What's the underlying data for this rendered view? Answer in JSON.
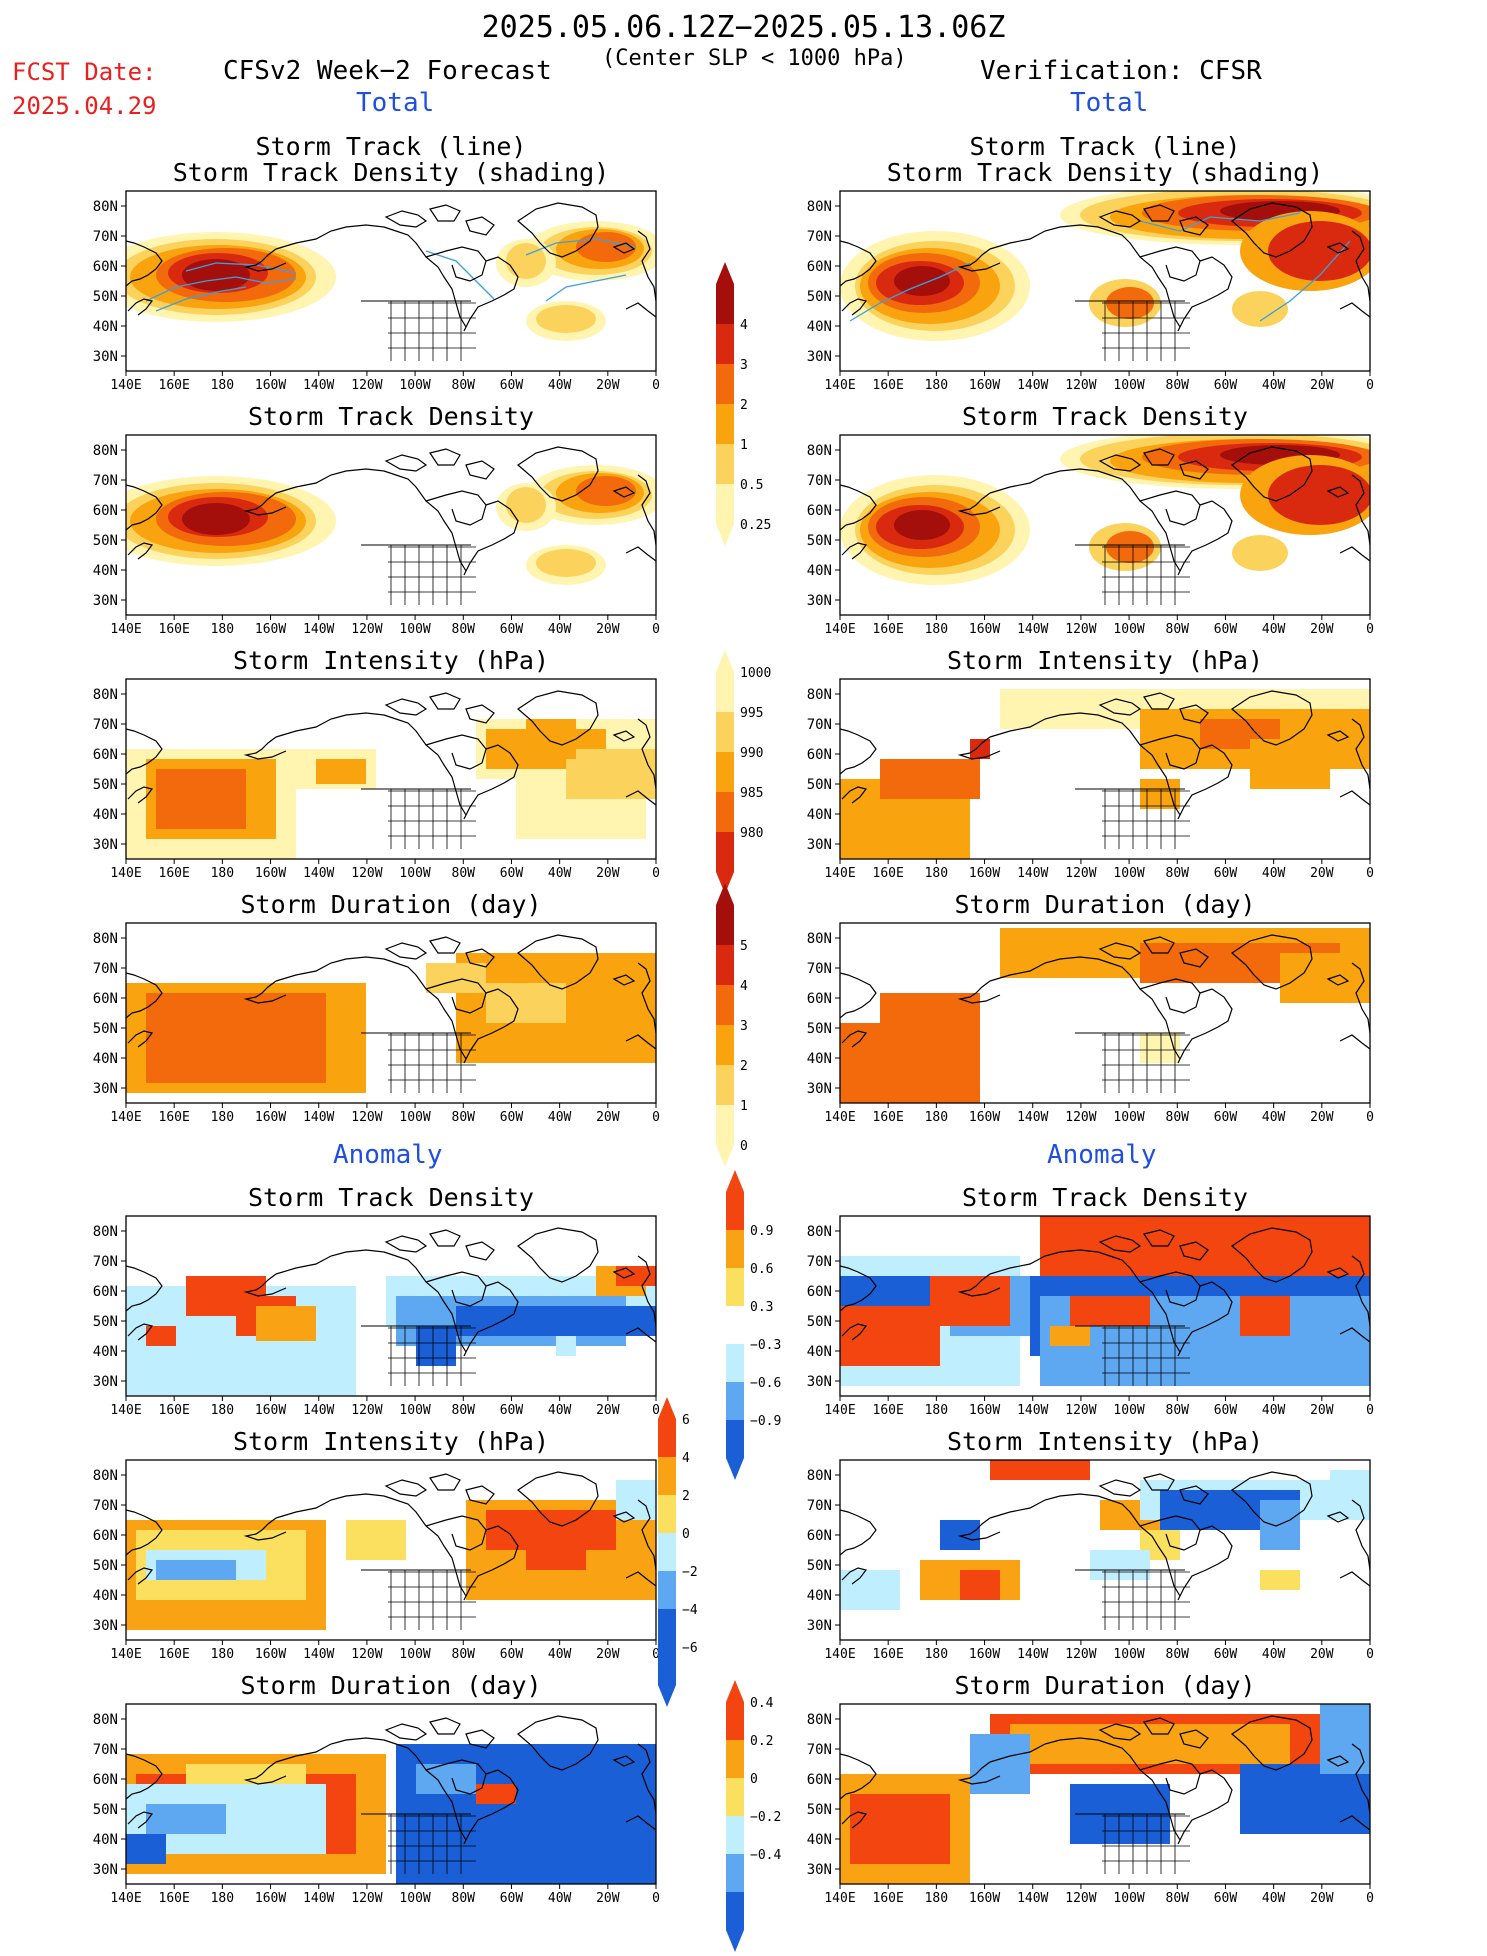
{
  "header": {
    "title": "2025.05.06.12Z−2025.05.13.06Z",
    "subtitle": "(Center SLP < 1000 hPa)",
    "fcst_label": "FCST Date:",
    "fcst_date": "2025.04.29",
    "left_model": "CFSv2 Week−2 Forecast",
    "right_model": "Verification: CFSR"
  },
  "sections": {
    "total": "Total",
    "anomaly": "Anomaly"
  },
  "panel_titles": {
    "track_line": "Storm Track (line)",
    "track_shading": "Storm Track Density (shading)",
    "density": "Storm Track Density",
    "intensity": "Storm Intensity (hPa)",
    "duration": "Storm Duration (day)"
  },
  "axis": {
    "lat_ticks": [
      "80N",
      "70N",
      "60N",
      "50N",
      "40N",
      "30N"
    ],
    "lon_ticks": [
      "140E",
      "160E",
      "180",
      "160W",
      "140W",
      "120W",
      "100W",
      "80W",
      "60W",
      "40W",
      "20W",
      "0"
    ]
  },
  "colorbars": {
    "density_total": [
      "4",
      "3",
      "2",
      "1",
      "0.5",
      "0.25"
    ],
    "intensity_total": [
      "1000",
      "995",
      "990",
      "985",
      "980"
    ],
    "duration_total": [
      "5",
      "4",
      "3",
      "2",
      "1",
      "0"
    ],
    "density_anom": [
      "0.9",
      "0.6",
      "0.3",
      "−0.3",
      "−0.6",
      "−0.9"
    ],
    "intensity_anom": [
      "6",
      "4",
      "2",
      "0",
      "−2",
      "−4",
      "−6"
    ],
    "duration_anom": [
      "0.4",
      "0.2",
      "0",
      "−0.2",
      "−0.4"
    ]
  },
  "colors": {
    "total_scale": [
      "#fff5b0",
      "#fbd35c",
      "#f9a30f",
      "#f26a0c",
      "#d92a10",
      "#a50f0b"
    ],
    "anom_pos": [
      "#fbe060",
      "#f9a314",
      "#f2450f"
    ],
    "anom_neg": [
      "#bfeeff",
      "#5ea8f2",
      "#1a5fd6"
    ],
    "title_red": "#e8201e",
    "section_blue": "#1f4fe0",
    "track_line": "#3aa0e0"
  }
}
